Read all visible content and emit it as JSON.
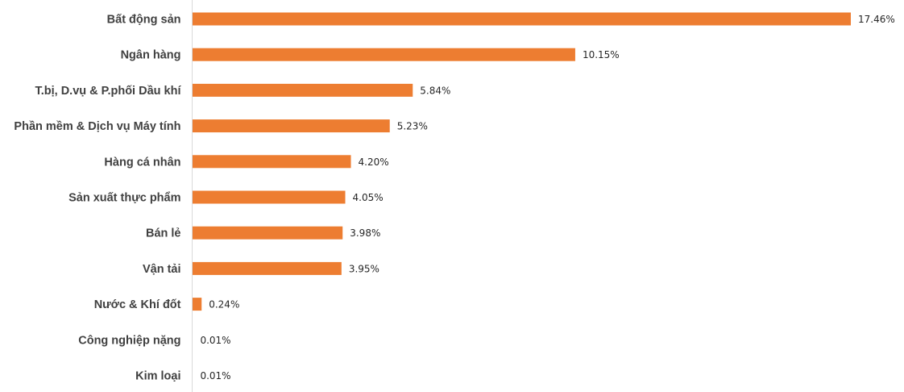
{
  "chart_data": {
    "type": "bar",
    "orientation": "horizontal",
    "title": "",
    "xlabel": "",
    "ylabel": "",
    "categories": [
      "Bất động sản",
      "Ngân hàng",
      "T.bị, D.vụ & P.phối Dầu khí",
      "Phần mềm & Dịch vụ Máy tính",
      "Hàng cá nhân",
      "Sản xuất thực phẩm",
      "Bán lẻ",
      "Vận tải",
      "Nước & Khí đốt",
      "Công nghiệp nặng",
      "Kim loại"
    ],
    "values": [
      17.46,
      10.15,
      5.84,
      5.23,
      4.2,
      4.05,
      3.98,
      3.95,
      0.24,
      0.01,
      0.01
    ],
    "data_labels": [
      "17.46%",
      "10.15%",
      "5.84%",
      "5.23%",
      "4.20%",
      "4.05%",
      "3.98%",
      "3.95%",
      "0.24%",
      "0.01%",
      "0.01%"
    ],
    "xlim": [
      0,
      17.46
    ],
    "grid": false,
    "legend": "none",
    "bar_color": "#ED7D31",
    "axis_color": "#D9D9D9"
  }
}
